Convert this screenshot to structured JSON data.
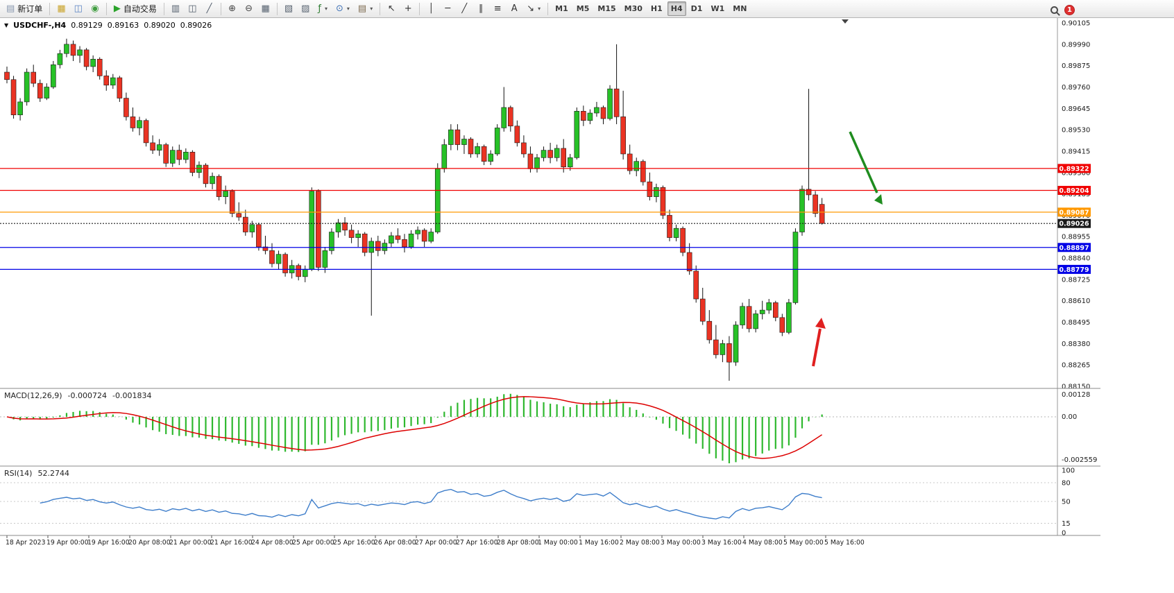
{
  "toolbar": {
    "caret_glyph": "▾",
    "badge": "1",
    "items": [
      {
        "name": "new-order-button",
        "glyph": "▤",
        "glyph_color": "#8796ad",
        "label": "新订单"
      },
      {
        "name": "separator",
        "sep": true
      },
      {
        "name": "market-watch-button",
        "glyph": "▦",
        "glyph_color": "#c9a227"
      },
      {
        "name": "data-window-button",
        "glyph": "◫",
        "glyph_color": "#5b84c4"
      },
      {
        "name": "navigator-button",
        "glyph": "◉",
        "glyph_color": "#3f9d3f"
      },
      {
        "name": "separator",
        "sep": true
      },
      {
        "name": "autotrading-button",
        "glyph": "▶",
        "glyph_color": "#2ba32b",
        "label": "自动交易"
      },
      {
        "name": "separator",
        "sep": true
      },
      {
        "name": "chart-bars-button",
        "glyph": "▥",
        "glyph_color": "#55606e"
      },
      {
        "name": "chart-candles-button",
        "glyph": "◫",
        "glyph_color": "#55606e"
      },
      {
        "name": "chart-line-button",
        "glyph": "╱",
        "glyph_color": "#55606e"
      },
      {
        "name": "separator",
        "sep": true
      },
      {
        "name": "zoom-in-button",
        "glyph": "⊕",
        "glyph_color": "#444444"
      },
      {
        "name": "zoom-out-button",
        "glyph": "⊖",
        "glyph_color": "#444444"
      },
      {
        "name": "tile-windows-button",
        "glyph": "▦",
        "glyph_color": "#55606e"
      },
      {
        "name": "separator",
        "sep": true
      },
      {
        "name": "profiles-button",
        "glyph": "▧",
        "glyph_color": "#55606e"
      },
      {
        "name": "objects-list-button",
        "glyph": "▨",
        "glyph_color": "#55606e"
      },
      {
        "name": "indicators-button",
        "glyph": "ƒ",
        "glyph_color": "#2e7d32",
        "caret": true
      },
      {
        "name": "periods-button",
        "glyph": "⊙",
        "glyph_color": "#3b6fb5",
        "caret": true
      },
      {
        "name": "templates-button",
        "glyph": "▤",
        "glyph_color": "#7d6a4f",
        "caret": true
      },
      {
        "name": "separator",
        "sep": true
      },
      {
        "name": "cursor-button",
        "glyph": "↖",
        "glyph_color": "#333333"
      },
      {
        "name": "crosshair-button",
        "glyph": "+",
        "glyph_color": "#333333"
      },
      {
        "name": "separator",
        "sep": true
      },
      {
        "name": "vertical-line-button",
        "glyph": "│",
        "glyph_color": "#333333"
      },
      {
        "name": "horizontal-line-button",
        "glyph": "─",
        "glyph_color": "#333333"
      },
      {
        "name": "trendline-button",
        "glyph": "╱",
        "glyph_color": "#333333"
      },
      {
        "name": "channel-button",
        "glyph": "∥",
        "glyph_color": "#333333"
      },
      {
        "name": "fibonacci-button",
        "glyph": "≡",
        "glyph_color": "#333333"
      },
      {
        "name": "text-button",
        "glyph": "A",
        "glyph_color": "#333333"
      },
      {
        "name": "arrows-button",
        "glyph": "↘",
        "glyph_color": "#333333",
        "caret": true
      },
      {
        "name": "separator",
        "sep": true
      },
      {
        "name": "tf-m1-button",
        "label": "M1",
        "tf": true
      },
      {
        "name": "tf-m5-button",
        "label": "M5",
        "tf": true
      },
      {
        "name": "tf-m15-button",
        "label": "M15",
        "tf": true
      },
      {
        "name": "tf-m30-button",
        "label": "M30",
        "tf": true
      },
      {
        "name": "tf-h1-button",
        "label": "H1",
        "tf": true
      },
      {
        "name": "tf-h4-button",
        "label": "H4",
        "tf": true,
        "active": true
      },
      {
        "name": "tf-d1-button",
        "label": "D1",
        "tf": true
      },
      {
        "name": "tf-w1-button",
        "label": "W1",
        "tf": true
      },
      {
        "name": "tf-mn-button",
        "label": "MN",
        "tf": true
      }
    ]
  },
  "chart": {
    "symbol_label": "USDCHF-,H4",
    "marker_glyph": "▼",
    "ohlc": {
      "open": "0.89129",
      "high": "0.89163",
      "low": "0.89020",
      "close": "0.89026"
    },
    "price_axis": [
      "0.90105",
      "0.89990",
      "0.89875",
      "0.89760",
      "0.89645",
      "0.89530",
      "0.89415",
      "0.89300",
      "0.89185",
      "0.89070",
      "0.88955",
      "0.88840",
      "0.88725",
      "0.88610",
      "0.88495",
      "0.88380",
      "0.88265",
      "0.88150"
    ],
    "time_axis": [
      "18 Apr 2023",
      "19 Apr 00:00",
      "19 Apr 16:00",
      "20 Apr 08:00",
      "21 Apr 00:00",
      "21 Apr 16:00",
      "24 Apr 08:00",
      "25 Apr 00:00",
      "25 Apr 16:00",
      "26 Apr 08:00",
      "27 Apr 00:00",
      "27 Apr 16:00",
      "28 Apr 08:00",
      "1 May 00:00",
      "1 May 16:00",
      "2 May 08:00",
      "3 May 00:00",
      "3 May 16:00",
      "4 May 08:00",
      "5 May 00:00",
      "5 May 16:00"
    ],
    "hlines": [
      {
        "name": "resistance-line-1",
        "price": "0.89322",
        "value": 0.89322,
        "color": "#f00000",
        "dash": false
      },
      {
        "name": "resistance-line-2",
        "price": "0.89204",
        "value": 0.89204,
        "color": "#f00000",
        "dash": false
      },
      {
        "name": "pivot-line",
        "price": "0.89087",
        "value": 0.89087,
        "color": "#ff9800",
        "dash": false
      },
      {
        "name": "bid-price-line",
        "price": "0.89026",
        "value": 0.89026,
        "color": "#1a1a1a",
        "dash": true
      },
      {
        "name": "support-line-1",
        "price": "0.88897",
        "value": 0.88897,
        "color": "#0000e6",
        "dash": false
      },
      {
        "name": "support-line-2",
        "price": "0.88779",
        "value": 0.88779,
        "color": "#0000e6",
        "dash": false
      }
    ],
    "colors": {
      "up": "#27c127",
      "down": "#ea3323",
      "wick": "#111111"
    },
    "annotations": {
      "green_arrow_color": "#1f8c1f",
      "red_arrow_color": "#e02020"
    },
    "candles": [
      [
        0.8984,
        0.8987,
        0.8978,
        0.898
      ],
      [
        0.898,
        0.8982,
        0.8959,
        0.8961
      ],
      [
        0.8961,
        0.897,
        0.8958,
        0.8968
      ],
      [
        0.8968,
        0.8986,
        0.8966,
        0.8984
      ],
      [
        0.8984,
        0.8988,
        0.8976,
        0.8978
      ],
      [
        0.8978,
        0.898,
        0.8968,
        0.897
      ],
      [
        0.897,
        0.8978,
        0.8969,
        0.8976
      ],
      [
        0.8976,
        0.899,
        0.8975,
        0.8988
      ],
      [
        0.8988,
        0.8996,
        0.8986,
        0.8994
      ],
      [
        0.8994,
        0.9002,
        0.8992,
        0.8999
      ],
      [
        0.8999,
        0.9001,
        0.899,
        0.8993
      ],
      [
        0.8993,
        0.8998,
        0.8989,
        0.8996
      ],
      [
        0.8996,
        0.8997,
        0.8985,
        0.8987
      ],
      [
        0.8987,
        0.8993,
        0.8984,
        0.8991
      ],
      [
        0.8991,
        0.8992,
        0.898,
        0.8982
      ],
      [
        0.8982,
        0.8985,
        0.8974,
        0.8977
      ],
      [
        0.8977,
        0.8983,
        0.8975,
        0.8981
      ],
      [
        0.8981,
        0.8982,
        0.8968,
        0.897
      ],
      [
        0.897,
        0.8973,
        0.8958,
        0.896
      ],
      [
        0.896,
        0.8965,
        0.8952,
        0.8954
      ],
      [
        0.8954,
        0.896,
        0.895,
        0.8958
      ],
      [
        0.8958,
        0.8959,
        0.8944,
        0.8946
      ],
      [
        0.8946,
        0.895,
        0.894,
        0.8942
      ],
      [
        0.8942,
        0.8948,
        0.8939,
        0.8945
      ],
      [
        0.8945,
        0.8946,
        0.8933,
        0.8935
      ],
      [
        0.8935,
        0.8944,
        0.8933,
        0.8942
      ],
      [
        0.8942,
        0.8945,
        0.8934,
        0.8937
      ],
      [
        0.8937,
        0.8943,
        0.8935,
        0.8941
      ],
      [
        0.8941,
        0.8942,
        0.8928,
        0.893
      ],
      [
        0.893,
        0.8936,
        0.8927,
        0.8934
      ],
      [
        0.8934,
        0.8935,
        0.8922,
        0.8924
      ],
      [
        0.8924,
        0.893,
        0.8921,
        0.8928
      ],
      [
        0.8928,
        0.8929,
        0.8915,
        0.8917
      ],
      [
        0.8917,
        0.8923,
        0.8913,
        0.892
      ],
      [
        0.892,
        0.8921,
        0.8906,
        0.8908
      ],
      [
        0.8908,
        0.8914,
        0.8904,
        0.8906
      ],
      [
        0.8906,
        0.891,
        0.8896,
        0.8898
      ],
      [
        0.8898,
        0.8904,
        0.8895,
        0.8902
      ],
      [
        0.8902,
        0.8903,
        0.8888,
        0.889
      ],
      [
        0.889,
        0.8896,
        0.8886,
        0.8888
      ],
      [
        0.8888,
        0.8892,
        0.8879,
        0.8881
      ],
      [
        0.8881,
        0.8888,
        0.8878,
        0.8886
      ],
      [
        0.8886,
        0.8887,
        0.8874,
        0.8876
      ],
      [
        0.8876,
        0.8883,
        0.8873,
        0.888
      ],
      [
        0.888,
        0.8881,
        0.8872,
        0.8874
      ],
      [
        0.8874,
        0.888,
        0.8871,
        0.8878
      ],
      [
        0.8878,
        0.8922,
        0.8877,
        0.892
      ],
      [
        0.892,
        0.8921,
        0.8877,
        0.8879
      ],
      [
        0.8879,
        0.889,
        0.8876,
        0.8888
      ],
      [
        0.8888,
        0.89,
        0.8886,
        0.8898
      ],
      [
        0.8898,
        0.8905,
        0.8895,
        0.8903
      ],
      [
        0.8903,
        0.8906,
        0.8896,
        0.8899
      ],
      [
        0.8899,
        0.8902,
        0.8892,
        0.8895
      ],
      [
        0.8895,
        0.8899,
        0.889,
        0.8897
      ],
      [
        0.8897,
        0.8898,
        0.8885,
        0.8887
      ],
      [
        0.8887,
        0.8895,
        0.8853,
        0.8893
      ],
      [
        0.8893,
        0.8896,
        0.8885,
        0.8888
      ],
      [
        0.8888,
        0.8894,
        0.8886,
        0.8892
      ],
      [
        0.8892,
        0.8898,
        0.889,
        0.8896
      ],
      [
        0.8896,
        0.89,
        0.8892,
        0.8894
      ],
      [
        0.8894,
        0.8897,
        0.8887,
        0.889
      ],
      [
        0.889,
        0.8899,
        0.8889,
        0.8897
      ],
      [
        0.8897,
        0.8901,
        0.8894,
        0.8899
      ],
      [
        0.8899,
        0.89,
        0.889,
        0.8893
      ],
      [
        0.8893,
        0.89,
        0.8892,
        0.8898
      ],
      [
        0.8898,
        0.8935,
        0.8897,
        0.8932
      ],
      [
        0.8932,
        0.8948,
        0.893,
        0.8945
      ],
      [
        0.8945,
        0.8956,
        0.8942,
        0.8953
      ],
      [
        0.8953,
        0.8956,
        0.8942,
        0.8945
      ],
      [
        0.8945,
        0.895,
        0.894,
        0.8948
      ],
      [
        0.8948,
        0.8949,
        0.8938,
        0.894
      ],
      [
        0.894,
        0.8946,
        0.8938,
        0.8944
      ],
      [
        0.8944,
        0.8945,
        0.8934,
        0.8936
      ],
      [
        0.8936,
        0.8942,
        0.8934,
        0.894
      ],
      [
        0.894,
        0.8956,
        0.8939,
        0.8954
      ],
      [
        0.8954,
        0.8976,
        0.8952,
        0.8965
      ],
      [
        0.8965,
        0.8966,
        0.8952,
        0.8955
      ],
      [
        0.8955,
        0.8958,
        0.8944,
        0.8946
      ],
      [
        0.8946,
        0.895,
        0.8938,
        0.894
      ],
      [
        0.894,
        0.8944,
        0.893,
        0.8932
      ],
      [
        0.8932,
        0.894,
        0.893,
        0.8938
      ],
      [
        0.8938,
        0.8944,
        0.8936,
        0.8942
      ],
      [
        0.8942,
        0.8946,
        0.8935,
        0.8938
      ],
      [
        0.8938,
        0.8945,
        0.8936,
        0.8943
      ],
      [
        0.8943,
        0.8948,
        0.893,
        0.8933
      ],
      [
        0.8933,
        0.894,
        0.8931,
        0.8938
      ],
      [
        0.8938,
        0.8965,
        0.8937,
        0.8963
      ],
      [
        0.8963,
        0.8966,
        0.8955,
        0.8958
      ],
      [
        0.8958,
        0.8964,
        0.8956,
        0.8962
      ],
      [
        0.8962,
        0.8968,
        0.896,
        0.8965
      ],
      [
        0.8965,
        0.8966,
        0.8956,
        0.8959
      ],
      [
        0.8959,
        0.8977,
        0.8958,
        0.8975
      ],
      [
        0.8975,
        0.8999,
        0.8956,
        0.896
      ],
      [
        0.896,
        0.8974,
        0.8937,
        0.894
      ],
      [
        0.894,
        0.8945,
        0.8929,
        0.8931
      ],
      [
        0.8931,
        0.8938,
        0.8928,
        0.8936
      ],
      [
        0.8936,
        0.8937,
        0.8923,
        0.8925
      ],
      [
        0.8925,
        0.893,
        0.8915,
        0.8917
      ],
      [
        0.8917,
        0.8924,
        0.8914,
        0.8922
      ],
      [
        0.8922,
        0.8923,
        0.8905,
        0.8907
      ],
      [
        0.8907,
        0.891,
        0.8893,
        0.8895
      ],
      [
        0.8895,
        0.8902,
        0.8893,
        0.89
      ],
      [
        0.89,
        0.8901,
        0.8885,
        0.8887
      ],
      [
        0.8887,
        0.8892,
        0.8875,
        0.8877
      ],
      [
        0.8877,
        0.888,
        0.886,
        0.8862
      ],
      [
        0.8862,
        0.8868,
        0.8848,
        0.885
      ],
      [
        0.885,
        0.8856,
        0.8838,
        0.884
      ],
      [
        0.884,
        0.8848,
        0.883,
        0.8832
      ],
      [
        0.8832,
        0.884,
        0.8828,
        0.8838
      ],
      [
        0.8838,
        0.8842,
        0.8818,
        0.8828
      ],
      [
        0.8828,
        0.885,
        0.8826,
        0.8848
      ],
      [
        0.8848,
        0.886,
        0.8846,
        0.8858
      ],
      [
        0.8858,
        0.8862,
        0.8844,
        0.8846
      ],
      [
        0.8846,
        0.8856,
        0.8844,
        0.8854
      ],
      [
        0.8854,
        0.8861,
        0.8851,
        0.8856
      ],
      [
        0.8856,
        0.8862,
        0.8854,
        0.886
      ],
      [
        0.886,
        0.8861,
        0.885,
        0.8852
      ],
      [
        0.8852,
        0.8854,
        0.8842,
        0.8844
      ],
      [
        0.8844,
        0.8862,
        0.8843,
        0.886
      ],
      [
        0.886,
        0.89,
        0.8859,
        0.8898
      ],
      [
        0.8898,
        0.8923,
        0.8896,
        0.8921
      ],
      [
        0.8921,
        0.8975,
        0.8915,
        0.8918
      ],
      [
        0.8918,
        0.892,
        0.8906,
        0.8908
      ],
      [
        0.89129,
        0.89163,
        0.8902,
        0.89026
      ]
    ]
  },
  "macd": {
    "title": "MACD(12,26,9)",
    "value1": "-0.000724",
    "value2": "-0.001834",
    "scale": [
      "0.00128",
      "0.00",
      "-0.002559"
    ],
    "histogram_color": "#2eb82e",
    "signal_color": "#dd0000"
  },
  "rsi": {
    "title": "RSI(14)",
    "value": "52.2744",
    "scale": [
      "100",
      "80",
      "50",
      "15",
      "0"
    ],
    "levels": [
      80,
      50,
      15
    ],
    "line_color": "#3d7dca"
  }
}
